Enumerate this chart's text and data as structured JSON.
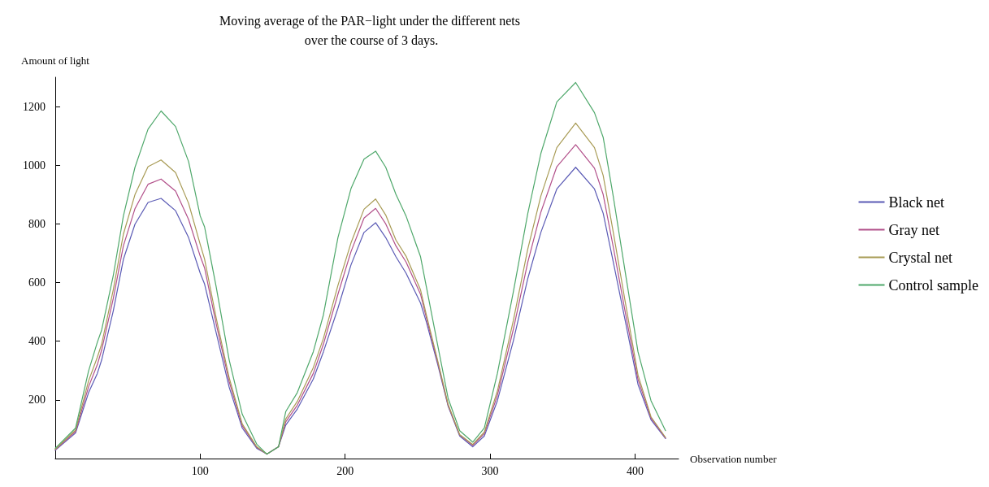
{
  "chart_data": {
    "type": "line",
    "title": "Moving average of the PAR−light under the different nets over the course of 3 days.",
    "xlabel": "Observation number",
    "ylabel": "Amount of light",
    "x": [
      0,
      14,
      23,
      29,
      32,
      40,
      47,
      55,
      64,
      73,
      83,
      92,
      100,
      103,
      111,
      120,
      129,
      139,
      146,
      154,
      159,
      167,
      178,
      185,
      195,
      204,
      213,
      221,
      228,
      235,
      242,
      252,
      256,
      264,
      271,
      279,
      288,
      296,
      305,
      316,
      326,
      335,
      346,
      359,
      372,
      378,
      385,
      393,
      402,
      411,
      421
    ],
    "series": [
      {
        "name": "Black net",
        "color": "#5b5bb5",
        "values": [
          28,
          87,
          225,
          290,
          336,
          503,
          679,
          799,
          873,
          887,
          845,
          753,
          632,
          595,
          429,
          243,
          104,
          35,
          15,
          40,
          114,
          169,
          271,
          364,
          512,
          660,
          771,
          804,
          753,
          688,
          632,
          530,
          466,
          318,
          179,
          77,
          40,
          77,
          197,
          401,
          614,
          771,
          919,
          993,
          919,
          836,
          669,
          475,
          253,
          132,
          68
        ]
      },
      {
        "name": "Gray net",
        "color": "#b2508a",
        "values": [
          30,
          92,
          245,
          320,
          370,
          545,
          725,
          852,
          935,
          953,
          912,
          815,
          690,
          650,
          460,
          262,
          112,
          38,
          15,
          40,
          125,
          182,
          290,
          390,
          560,
          705,
          820,
          853,
          800,
          725,
          670,
          560,
          480,
          325,
          182,
          80,
          45,
          85,
          215,
          440,
          670,
          840,
          995,
          1070,
          990,
          900,
          720,
          505,
          270,
          138,
          70
        ]
      },
      {
        "name": "Crystal net",
        "color": "#a89b55",
        "values": [
          32,
          97,
          265,
          345,
          390,
          575,
          765,
          900,
          995,
          1018,
          975,
          870,
          730,
          680,
          480,
          275,
          118,
          40,
          15,
          40,
          135,
          195,
          310,
          410,
          590,
          735,
          850,
          885,
          830,
          745,
          690,
          575,
          490,
          330,
          185,
          82,
          48,
          90,
          230,
          470,
          715,
          895,
          1060,
          1144,
          1060,
          965,
          770,
          540,
          285,
          142,
          72
        ]
      },
      {
        "name": "Control sample",
        "color": "#4fa86b",
        "values": [
          35,
          104,
          299,
          396,
          438,
          623,
          827,
          993,
          1123,
          1185,
          1132,
          1012,
          827,
          790,
          586,
          336,
          151,
          49,
          15,
          40,
          160,
          225,
          364,
          490,
          753,
          920,
          1021,
          1048,
          993,
          901,
          827,
          688,
          586,
          382,
          206,
          95,
          56,
          104,
          290,
          568,
          836,
          1040,
          1216,
          1282,
          1179,
          1095,
          892,
          642,
          364,
          197,
          95
        ]
      }
    ],
    "xlim": [
      0,
      430
    ],
    "xticks": [
      100,
      200,
      300,
      400
    ],
    "ylim": [
      0,
      1300
    ],
    "yticks": [
      200,
      400,
      600,
      800,
      1000,
      1200
    ],
    "legend": "right",
    "grid": false,
    "marker": "none",
    "line_style": "solid"
  }
}
